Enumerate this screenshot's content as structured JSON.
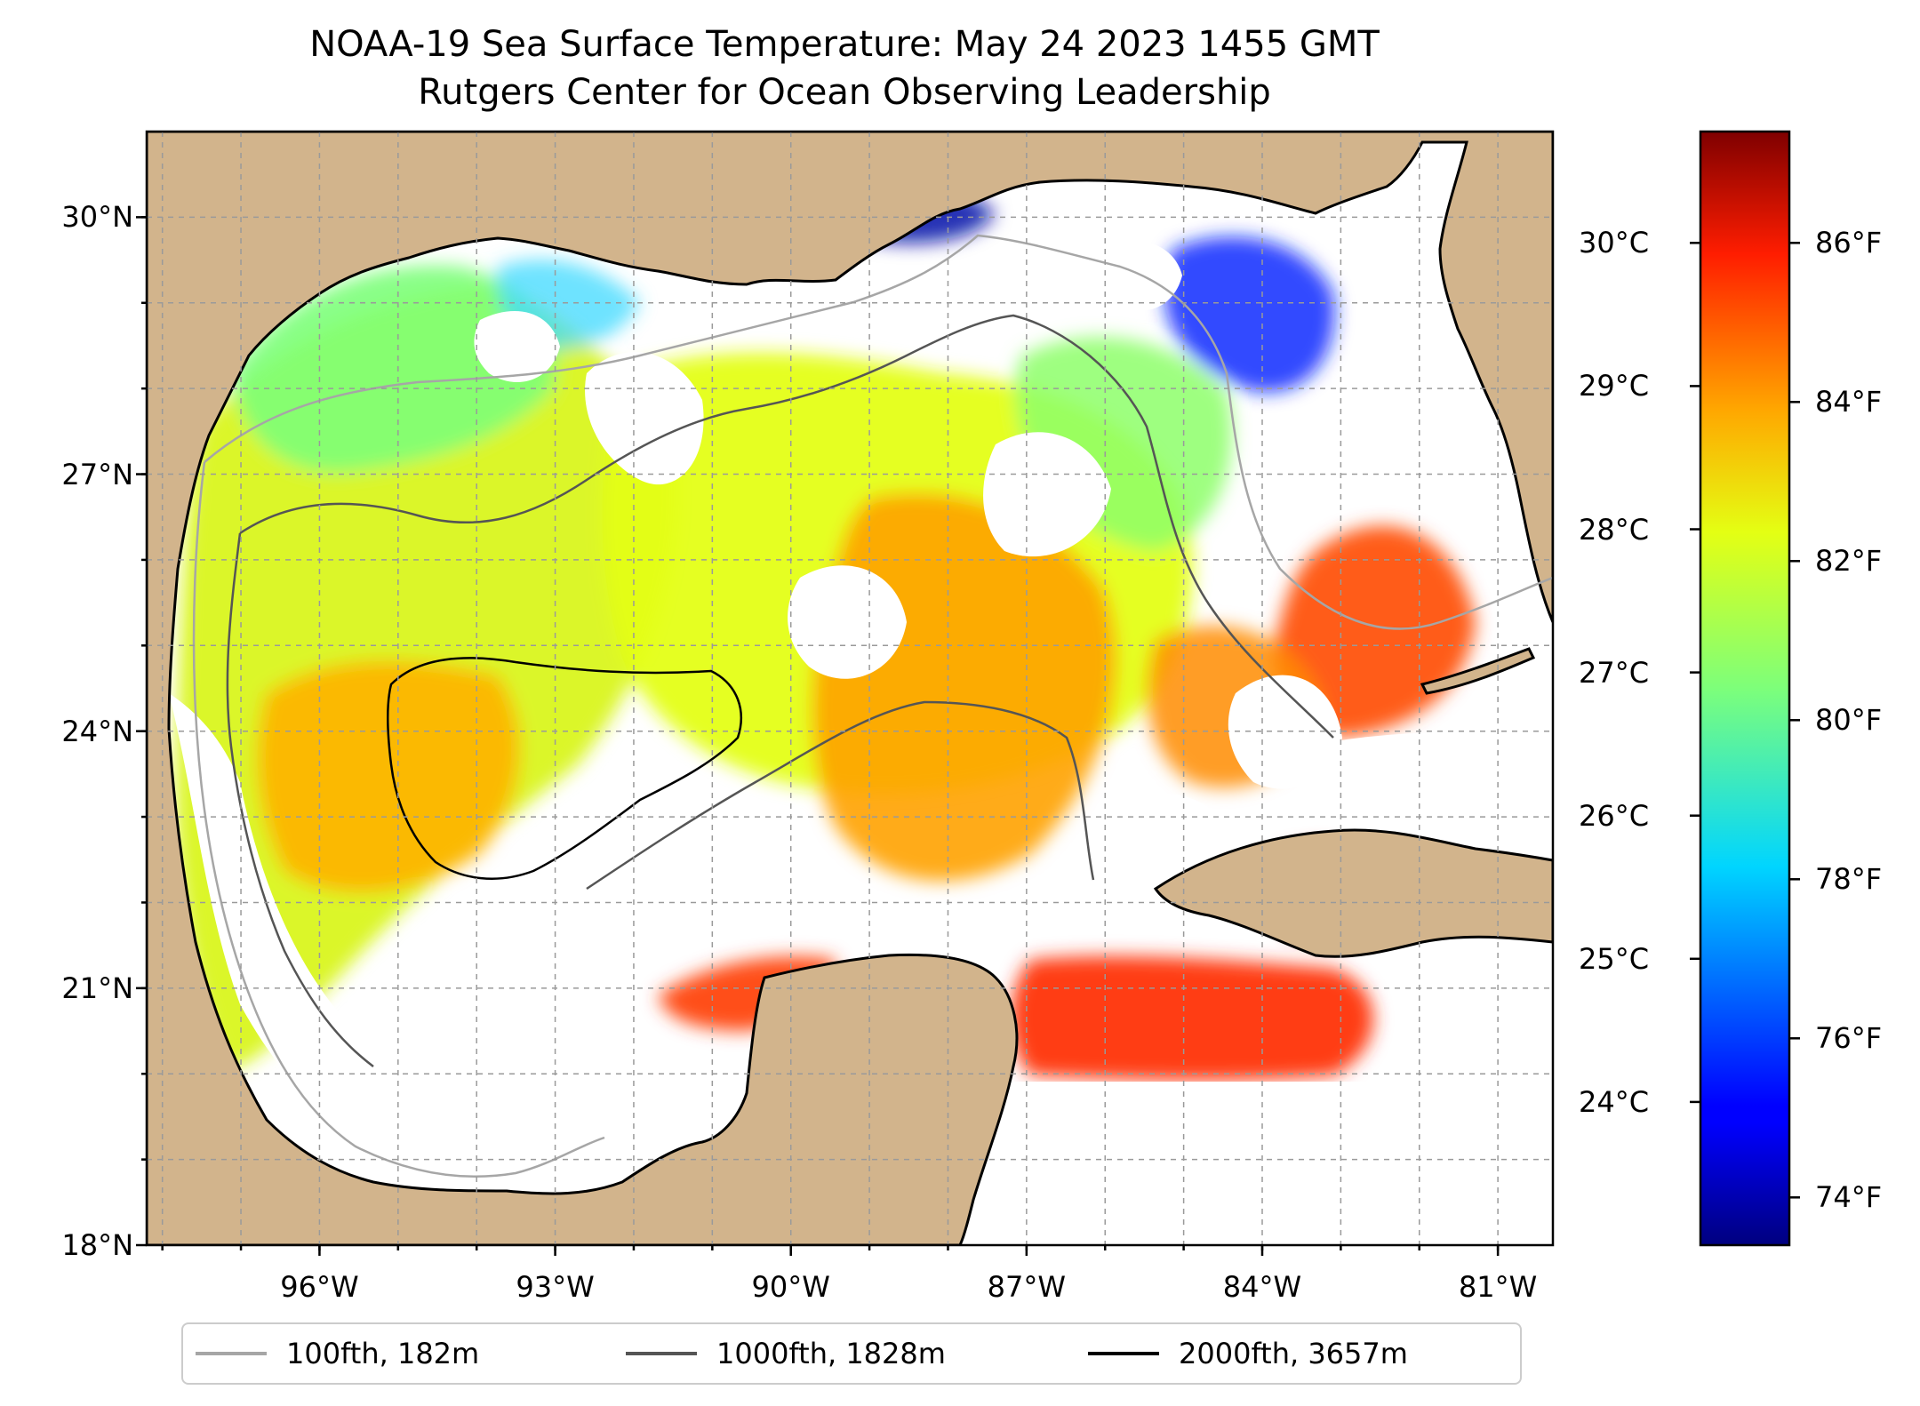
{
  "title": {
    "line1": "NOAA-19 Sea Surface Temperature: May 24 2023 1455 GMT",
    "line2": "Rutgers Center for Ocean Observing Leadership"
  },
  "map": {
    "extent": {
      "lon_min": -98.2,
      "lon_max": -80.3,
      "lat_min": 18.0,
      "lat_max": 31.0
    },
    "lat_ticks": [
      {
        "value": 30,
        "label": "30°N"
      },
      {
        "value": 27,
        "label": "27°N"
      },
      {
        "value": 24,
        "label": "24°N"
      },
      {
        "value": 21,
        "label": "21°N"
      },
      {
        "value": 18,
        "label": "18°N"
      }
    ],
    "lon_ticks": [
      {
        "value": -96,
        "label": "96°W"
      },
      {
        "value": -93,
        "label": "93°W"
      },
      {
        "value": -90,
        "label": "90°W"
      },
      {
        "value": -87,
        "label": "87°W"
      },
      {
        "value": -84,
        "label": "84°W"
      },
      {
        "value": -81,
        "label": "81°W"
      }
    ],
    "land_color": "#d2b48c",
    "cloud_color": "#ffffff",
    "gridlines": "dashed"
  },
  "colorbar": {
    "colormap": "jet",
    "range_f": [
      73.4,
      87.4
    ],
    "celsius_ticks": [
      {
        "value": 30,
        "label": "30°C"
      },
      {
        "value": 29,
        "label": "29°C"
      },
      {
        "value": 28,
        "label": "28°C"
      },
      {
        "value": 27,
        "label": "27°C"
      },
      {
        "value": 26,
        "label": "26°C"
      },
      {
        "value": 25,
        "label": "25°C"
      },
      {
        "value": 24,
        "label": "24°C"
      }
    ],
    "fahrenheit_ticks": [
      {
        "value": 86,
        "label": "86°F"
      },
      {
        "value": 84,
        "label": "84°F"
      },
      {
        "value": 82,
        "label": "82°F"
      },
      {
        "value": 80,
        "label": "80°F"
      },
      {
        "value": 78,
        "label": "78°F"
      },
      {
        "value": 76,
        "label": "76°F"
      },
      {
        "value": 74,
        "label": "74°F"
      }
    ]
  },
  "legend": {
    "items": [
      {
        "label": "100fth, 182m",
        "color": "#a6a6a6"
      },
      {
        "label": "1000fth, 1828m",
        "color": "#555555"
      },
      {
        "label": "2000fth, 3657m",
        "color": "#000000"
      }
    ]
  }
}
